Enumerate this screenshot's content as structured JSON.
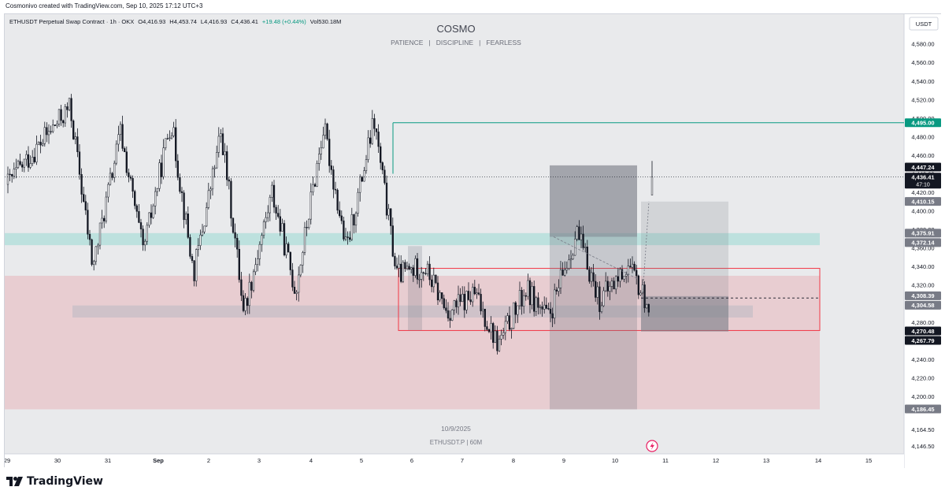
{
  "header": {
    "created_by": "Cosmonivo created with TradingView.com, Sep 10, 2025 17:12 UTC+3"
  },
  "legend": {
    "symbol": "ETHUSDT Perpetual Swap Contract · 1h · OKX",
    "open": "O4,416.93",
    "high": "H4,453.74",
    "low": "L4,416.93",
    "close": "C4,436.41",
    "change": "+19.48 (+0.44%)",
    "volume": "Vol530.18M"
  },
  "watermark": {
    "title": "COSMO",
    "subtitle": "PATIENCE   |   DISCIPLINE   |   FEARLESS",
    "date": "10/9/2025",
    "symbol": "ETHUSDT.P | 60M"
  },
  "currency_button": "USDT",
  "footer": {
    "brand": "TradingView"
  },
  "colors": {
    "up": "#131722",
    "down": "#131722",
    "up_body": "#ffffff",
    "resistance_line": "#089981",
    "supply_zone": "#e8b4bc",
    "demand_band": "#b2dfdb",
    "range_box": "#f23645",
    "position_box": "#787b86"
  },
  "chart_data": {
    "type": "candlestick",
    "timeframe": "1h",
    "ylim": [
      4138,
      4612
    ],
    "x_axis_labels": [
      "29",
      "30",
      "31",
      "Sep",
      "2",
      "3",
      "4",
      "5",
      "6",
      "7",
      "8",
      "9",
      "10",
      "11",
      "12",
      "13",
      "14",
      "15"
    ],
    "y_axis_ticks": [
      "4,580.00",
      "4,560.00",
      "4,540.00",
      "4,520.00",
      "4,500.00",
      "4,480.00",
      "4,460.00",
      "4,440.00",
      "4,420.00",
      "4,400.00",
      "4,380.00",
      "4,360.00",
      "4,340.00",
      "4,320.00",
      "4,300.00",
      "4,280.00",
      "4,260.00",
      "4,240.00",
      "4,220.00",
      "4,200.00",
      "4,164.50",
      "4,146.50"
    ],
    "price_labels": [
      {
        "value": "4,495.00",
        "price": 4495.0,
        "style": "green"
      },
      {
        "value": "4,447.24",
        "price": 4447.24,
        "style": "dark"
      },
      {
        "value": "4,436.41",
        "price": 4436.41,
        "style": "dark",
        "sub": "47:10"
      },
      {
        "value": "4,410.15",
        "price": 4410.15,
        "style": "gray"
      },
      {
        "value": "4,375.91",
        "price": 4375.91,
        "style": "gray"
      },
      {
        "value": "4,372.14",
        "price": 4372.14,
        "style": "gray"
      },
      {
        "value": "4,308.39",
        "price": 4308.39,
        "style": "gray"
      },
      {
        "value": "4,304.58",
        "price": 4304.58,
        "style": "gray"
      },
      {
        "value": "4,270.48",
        "price": 4270.48,
        "style": "dark"
      },
      {
        "value": "4,267.79",
        "price": 4267.79,
        "style": "dark"
      },
      {
        "value": "4,186.45",
        "price": 4186.45,
        "style": "gray"
      }
    ],
    "last_price": 4436.41,
    "resistance_level": 4495.0,
    "zones": [
      {
        "name": "supply-zone",
        "top": 4330,
        "bottom": 4186
      },
      {
        "name": "demand-band",
        "top": 4376,
        "bottom": 4363
      },
      {
        "name": "gray-band",
        "top": 4298,
        "bottom": 4285
      },
      {
        "name": "range-box",
        "top": 4338,
        "bottom": 4271
      },
      {
        "name": "position-box-large",
        "top": 4449,
        "bottom": 4186
      },
      {
        "name": "position-box-right",
        "top": 4410,
        "bottom": 4270
      }
    ],
    "range_midline": 4306,
    "key_ohlc": [
      {
        "label": "open",
        "value": 4416.93
      },
      {
        "label": "high",
        "value": 4453.74
      },
      {
        "label": "low",
        "value": 4416.93
      },
      {
        "label": "close",
        "value": 4436.41
      }
    ],
    "swing_points": [
      {
        "label": "30",
        "high": 4512,
        "low": 4265
      },
      {
        "label": "31",
        "high": 4485,
        "low": 4300
      },
      {
        "label": "Sep",
        "high": 4498,
        "low": 4260
      },
      {
        "label": "2",
        "high": 4485,
        "low": 4210
      },
      {
        "label": "3",
        "high": 4420,
        "low": 4268
      },
      {
        "label": "4",
        "high": 4491,
        "low": 4300
      },
      {
        "label": "5",
        "high": 4497,
        "low": 4260
      },
      {
        "label": "6",
        "high": 4340,
        "low": 4270
      },
      {
        "label": "7",
        "high": 4310,
        "low": 4232
      },
      {
        "label": "8",
        "high": 4315,
        "low": 4270
      },
      {
        "label": "9",
        "high": 4377,
        "low": 4272
      },
      {
        "label": "10",
        "high": 4340,
        "low": 4276
      },
      {
        "label": "11",
        "high": 4454,
        "low": 4320
      }
    ]
  }
}
